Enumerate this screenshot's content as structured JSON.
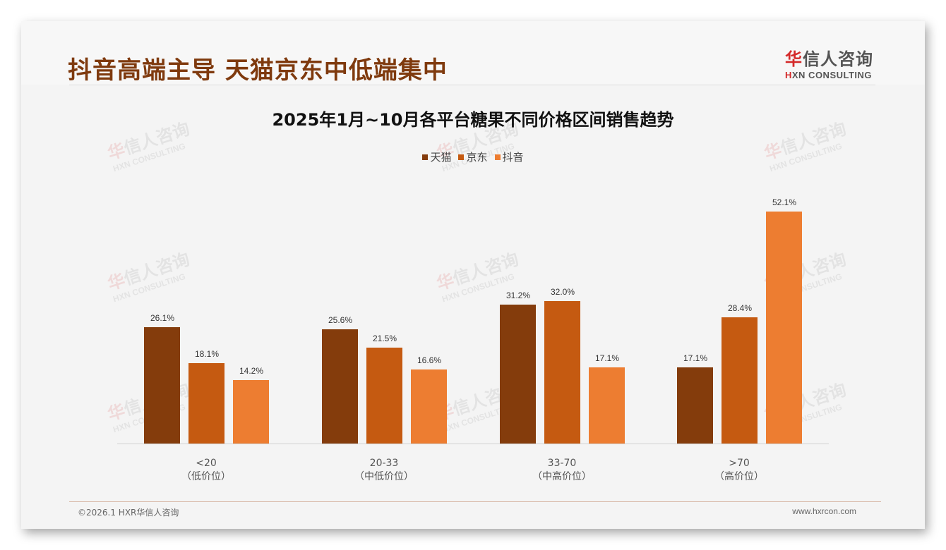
{
  "header": {
    "title": "抖音高端主导 天猫京东中低端集中",
    "logo_cn_mark": "华",
    "logo_cn_rest": "信人咨询",
    "logo_en_mark": "H",
    "logo_en_rest": "XN CONSULTING"
  },
  "watermark": {
    "cn_mark": "华",
    "cn_rest": "信人咨询",
    "en": "HXN CONSULTING"
  },
  "footer": {
    "copyright": "©2026.1 HXR华信人咨询",
    "website": "www.hxrcon.com"
  },
  "colors": {
    "title": "#7f3a0e",
    "tmall": "#843c0c",
    "jd": "#c55a11",
    "douyin": "#ed7d31"
  },
  "chart_data": {
    "type": "bar",
    "title": "2025年1月~10月各平台糖果不同价格区间销售趋势",
    "xlabel": "",
    "ylabel": "",
    "categories": [
      "<20",
      "20-33",
      "33-70",
      ">70"
    ],
    "category_sublabels": [
      "（低价位）",
      "（中低价位）",
      "（中高价位）",
      "（高价位）"
    ],
    "series": [
      {
        "name": "天猫",
        "color": "#843c0c",
        "values": [
          26.1,
          25.6,
          31.2,
          17.1
        ],
        "labels": [
          "26.1%",
          "25.6%",
          "31.2%",
          "17.1%"
        ]
      },
      {
        "name": "京东",
        "color": "#c55a11",
        "values": [
          18.1,
          21.5,
          32.0,
          28.4
        ],
        "labels": [
          "18.1%",
          "21.5%",
          "32.0%",
          "28.4%"
        ]
      },
      {
        "name": "抖音",
        "color": "#ed7d31",
        "values": [
          14.2,
          16.6,
          17.1,
          52.1
        ],
        "labels": [
          "14.2%",
          "16.6%",
          "17.1%",
          "52.1%"
        ]
      }
    ],
    "value_format": "percent",
    "ylim": [
      0,
      55
    ],
    "grid": false,
    "legend_position": "top"
  }
}
